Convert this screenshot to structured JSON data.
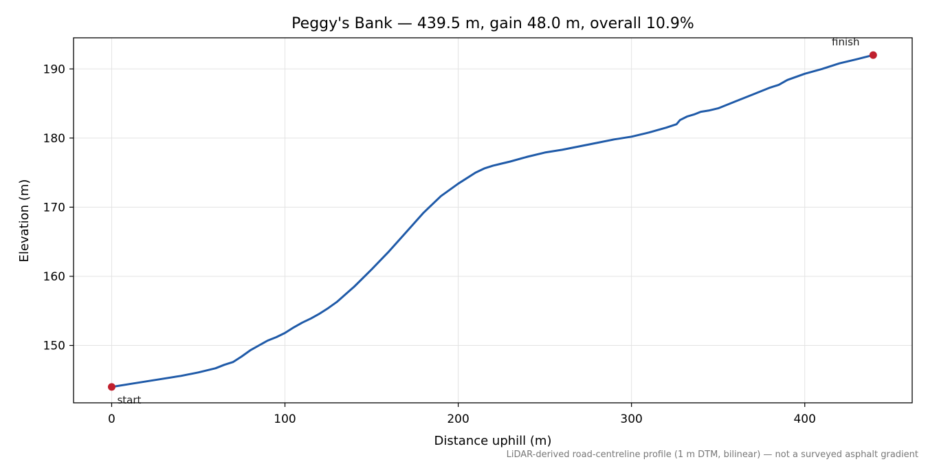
{
  "chart_data": {
    "type": "line",
    "title": "Peggy's Bank — 439.5 m, gain 48.0 m, overall 10.9%",
    "xlabel": "Distance uphill (m)",
    "ylabel": "Elevation (m)",
    "xlim": [
      -22,
      462
    ],
    "ylim": [
      141.7,
      194.5
    ],
    "xticks": [
      0,
      100,
      200,
      300,
      400
    ],
    "yticks": [
      150,
      160,
      170,
      180,
      190
    ],
    "grid": true,
    "series": [
      {
        "color": "#1f5aa8",
        "x": [
          0,
          10,
          20,
          30,
          40,
          50,
          60,
          65,
          70,
          75,
          80,
          85,
          90,
          95,
          100,
          105,
          110,
          115,
          120,
          125,
          130,
          140,
          150,
          160,
          170,
          180,
          190,
          200,
          210,
          215,
          220,
          225,
          230,
          240,
          250,
          260,
          270,
          280,
          290,
          300,
          310,
          320,
          326,
          328,
          332,
          336,
          340,
          345,
          350,
          360,
          370,
          380,
          385,
          390,
          400,
          410,
          420,
          430,
          439.5
        ],
        "y": [
          144.0,
          144.4,
          144.8,
          145.2,
          145.6,
          146.1,
          146.7,
          147.2,
          147.6,
          148.4,
          149.3,
          150.0,
          150.7,
          151.2,
          151.8,
          152.6,
          153.3,
          153.9,
          154.6,
          155.4,
          156.3,
          158.5,
          161.0,
          163.6,
          166.4,
          169.2,
          171.6,
          173.4,
          175.0,
          175.6,
          176.0,
          176.3,
          176.6,
          177.3,
          177.9,
          178.3,
          178.8,
          179.3,
          179.8,
          180.2,
          180.8,
          181.5,
          182.0,
          182.6,
          183.1,
          183.4,
          183.8,
          184.0,
          184.3,
          185.3,
          186.3,
          187.3,
          187.7,
          188.4,
          189.3,
          190.0,
          190.8,
          191.4,
          192.0
        ]
      }
    ],
    "points": [
      {
        "x": 0,
        "y": 144.0,
        "label": "start",
        "color": "#c0202e"
      },
      {
        "x": 439.5,
        "y": 192.0,
        "label": "finish",
        "color": "#c0202e"
      }
    ],
    "footnote": "LiDAR-derived road-centreline profile (1 m DTM, bilinear) — not a surveyed asphalt gradient"
  }
}
